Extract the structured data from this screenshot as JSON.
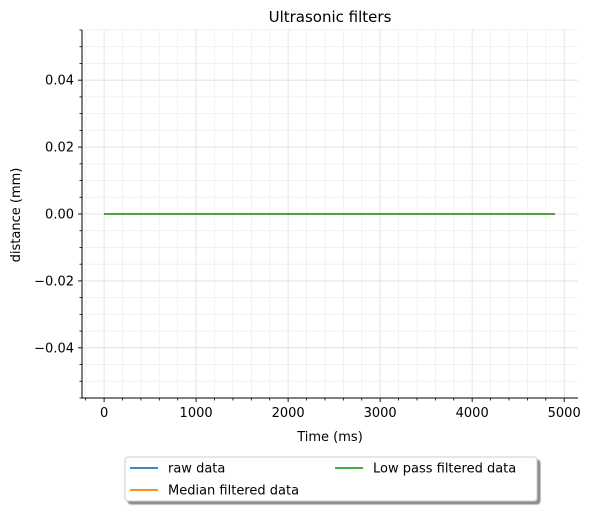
{
  "chart_data": {
    "type": "line",
    "title": "Ultrasonic filters",
    "xlabel": "Time (ms)",
    "ylabel": "distance (mm)",
    "xlim": [
      -240,
      5150
    ],
    "ylim": [
      -0.055,
      0.055
    ],
    "x_ticks": [
      0,
      1000,
      2000,
      3000,
      4000,
      5000
    ],
    "x_tick_labels": [
      "0",
      "1000",
      "2000",
      "3000",
      "4000",
      "5000"
    ],
    "y_ticks": [
      0.04,
      0.02,
      0.0,
      -0.02,
      -0.04
    ],
    "y_tick_labels": [
      "0.04",
      "0.02",
      "0.00",
      "−0.02",
      "−0.04"
    ],
    "x_minor_step": 200,
    "y_minor_step": 0.005,
    "grid": true,
    "legend_position": "bottom-center, below plot",
    "legend_columns": 2,
    "series": [
      {
        "name": "raw data",
        "color": "#1f77b4",
        "x": [
          0,
          4900
        ],
        "y": [
          0,
          0
        ]
      },
      {
        "name": "Median filtered data",
        "color": "#ff7f0e",
        "x": [
          0,
          4900
        ],
        "y": [
          0,
          0
        ]
      },
      {
        "name": "Low pass filtered data",
        "color": "#2ca02c",
        "x": [
          0,
          4900
        ],
        "y": [
          0,
          0
        ]
      }
    ]
  }
}
